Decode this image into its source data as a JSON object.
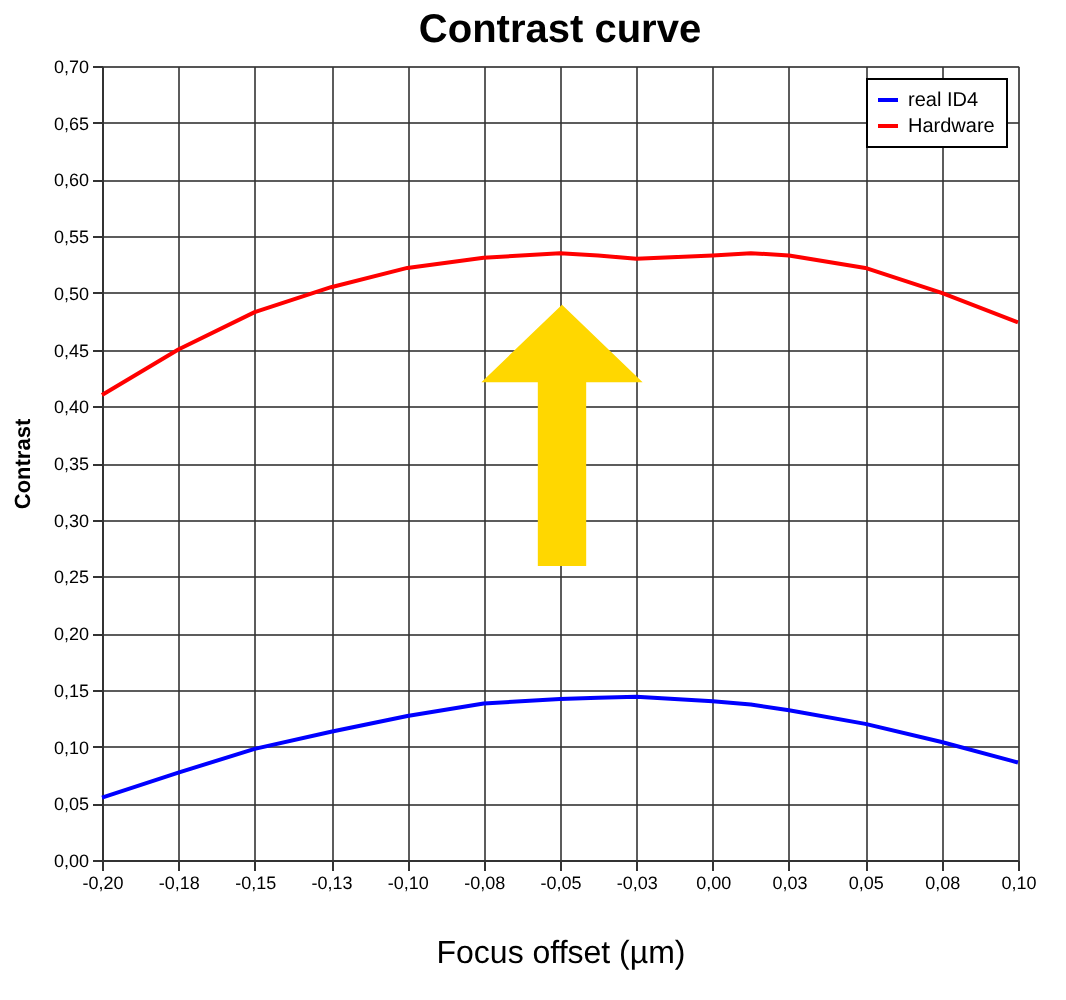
{
  "chart_data": {
    "type": "line",
    "title": "Contrast curve",
    "xlabel": "Focus offset (µm)",
    "ylabel": "Contrast",
    "x": [
      -0.2,
      -0.175,
      -0.15,
      -0.125,
      -0.1,
      -0.075,
      -0.05,
      -0.0375,
      -0.025,
      0,
      0.0125,
      0.025,
      0.05,
      0.075,
      0.1
    ],
    "series": [
      {
        "name": "real ID4",
        "color": "#0000ff",
        "values": [
          0.055,
          0.077,
          0.098,
          0.113,
          0.127,
          0.138,
          0.142,
          0.143,
          0.144,
          0.14,
          0.137,
          0.132,
          0.12,
          0.104,
          0.086
        ]
      },
      {
        "name": "Hardware",
        "color": "#ff0000",
        "values": [
          0.41,
          0.45,
          0.483,
          0.505,
          0.522,
          0.531,
          0.535,
          0.533,
          0.53,
          0.533,
          0.535,
          0.533,
          0.522,
          0.5,
          0.474
        ]
      }
    ],
    "xlim": [
      -0.2,
      0.1
    ],
    "xticks": [
      {
        "value": -0.2,
        "label": "-0,20"
      },
      {
        "value": -0.175,
        "label": "-0,18"
      },
      {
        "value": -0.15,
        "label": "-0,15"
      },
      {
        "value": -0.125,
        "label": "-0,13"
      },
      {
        "value": -0.1,
        "label": "-0,10"
      },
      {
        "value": -0.075,
        "label": "-0,08"
      },
      {
        "value": -0.05,
        "label": "-0,05"
      },
      {
        "value": -0.025,
        "label": "-0,03"
      },
      {
        "value": 0,
        "label": "0,00"
      },
      {
        "value": 0.025,
        "label": "0,03"
      },
      {
        "value": 0.05,
        "label": "0,05"
      },
      {
        "value": 0.075,
        "label": "0,08"
      },
      {
        "value": 0.1,
        "label": "0,10"
      }
    ],
    "ylim": [
      0,
      0.7
    ],
    "yticks": [
      {
        "value": 0,
        "label": "0,00"
      },
      {
        "value": 0.05,
        "label": "0,05"
      },
      {
        "value": 0.1,
        "label": "0,10"
      },
      {
        "value": 0.15,
        "label": "0,15"
      },
      {
        "value": 0.2,
        "label": "0,20"
      },
      {
        "value": 0.25,
        "label": "0,25"
      },
      {
        "value": 0.3,
        "label": "0,30"
      },
      {
        "value": 0.35,
        "label": "0,35"
      },
      {
        "value": 0.4,
        "label": "0,40"
      },
      {
        "value": 0.45,
        "label": "0,45"
      },
      {
        "value": 0.5,
        "label": "0,50"
      },
      {
        "value": 0.55,
        "label": "0,55"
      },
      {
        "value": 0.6,
        "label": "0,60"
      },
      {
        "value": 0.65,
        "label": "0,65"
      },
      {
        "value": 0.7,
        "label": "0,70"
      }
    ],
    "grid": true,
    "legend": "top right",
    "marker": "none",
    "line_style": "solid"
  }
}
